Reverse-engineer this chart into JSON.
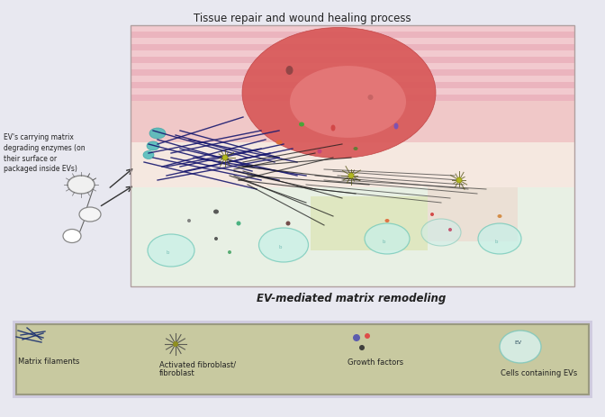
{
  "title": "Tissue repair and wound healing process",
  "subtitle": "EV-mediated matrix remodeling",
  "left_label": "EV's carrying matrix\ndegrading enzymes (on\ntheir surface or\npackaged inside EVs)",
  "bg_color": "#e8e8f0",
  "legend_items": [
    "Matrix filaments",
    "Activated fibroblast/\nfibroblast",
    "Growth factors",
    "Cells containing EVs"
  ],
  "legend_bg": "#c8c9a0",
  "legend_border": "#9a9a80",
  "wound_color": "#d85050",
  "wound_edge": "#c04040",
  "skin_pink": "#f0b8c0",
  "skin_stripe1": "#f5c8d0",
  "skin_stripe2": "#e8a8b8",
  "dermis_color": "#f0d8d0",
  "lower_dermis": "#e8f0e0",
  "filament_navy": "#1a1a70",
  "filament_dark": "#202020",
  "cell_fill": "#c8f0e8",
  "cell_edge": "#70c8b8"
}
